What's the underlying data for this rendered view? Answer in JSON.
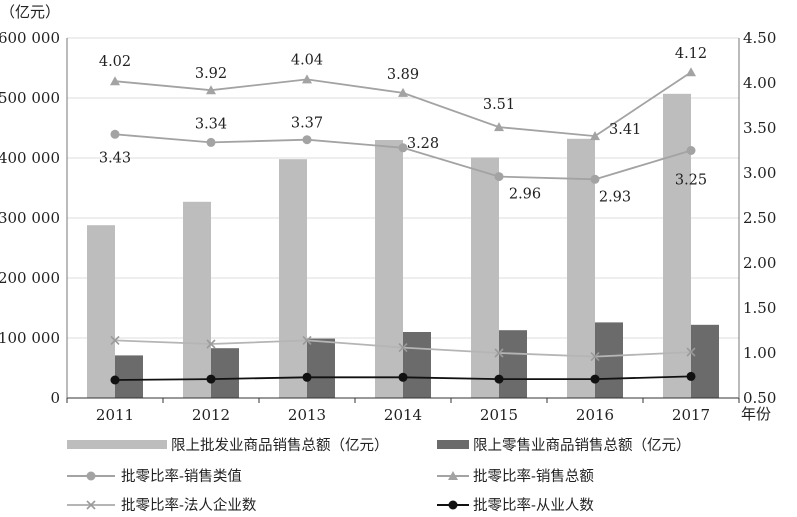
{
  "chart_data": {
    "type": "bar-line-combo",
    "categories": [
      "2011",
      "2012",
      "2013",
      "2014",
      "2015",
      "2016",
      "2017"
    ],
    "xlabel_suffix": "年份",
    "left_axis": {
      "unit": "（亿元）",
      "ylim": [
        0,
        600000
      ],
      "ticks": [
        0,
        100000,
        200000,
        300000,
        400000,
        500000,
        600000
      ],
      "tick_labels": [
        "0",
        "100 000",
        "200 000",
        "300 000",
        "400 000",
        "500 000",
        "600 000"
      ]
    },
    "right_axis": {
      "ylim": [
        0.5,
        4.5
      ],
      "ticks": [
        0.5,
        1.0,
        1.5,
        2.0,
        2.5,
        3.0,
        3.5,
        4.0,
        4.5
      ],
      "tick_labels": [
        "0.50",
        "1.00",
        "1.50",
        "2.00",
        "2.50",
        "3.00",
        "3.50",
        "4.00",
        "4.50"
      ]
    },
    "bars": [
      {
        "name": "限上批发业商品销售总额（亿元）",
        "color": "#bdbdbd",
        "values": [
          288000,
          327000,
          398000,
          430000,
          401000,
          432000,
          507000
        ]
      },
      {
        "name": "限上零售业商品销售总额（亿元）",
        "color": "#6b6b6b",
        "values": [
          71000,
          83000,
          99000,
          110000,
          113000,
          126000,
          122000
        ]
      }
    ],
    "lines": [
      {
        "name": "批零比率-销售类值",
        "marker": "circle",
        "color": "#a3a3a3",
        "values": [
          3.43,
          3.34,
          3.37,
          3.28,
          2.96,
          2.93,
          3.25
        ],
        "labels": [
          "3.43",
          "3.34",
          "3.37",
          "3.28",
          "2.96",
          "2.93",
          "3.25"
        ]
      },
      {
        "name": "批零比率-销售总额",
        "marker": "triangle",
        "color": "#a3a3a3",
        "values": [
          4.02,
          3.92,
          4.04,
          3.89,
          3.51,
          3.41,
          4.12
        ],
        "labels": [
          "4.02",
          "3.92",
          "4.04",
          "3.89",
          "3.51",
          "3.41",
          "4.12"
        ]
      },
      {
        "name": "批零比率-法人企业数",
        "marker": "x",
        "color": "#b5b5b5",
        "values": [
          1.14,
          1.1,
          1.14,
          1.06,
          1.0,
          0.96,
          1.01
        ],
        "labels": []
      },
      {
        "name": "批零比率-从业人数",
        "marker": "circle",
        "color": "#111111",
        "values": [
          0.7,
          0.71,
          0.73,
          0.73,
          0.71,
          0.71,
          0.74
        ],
        "labels": []
      }
    ]
  }
}
